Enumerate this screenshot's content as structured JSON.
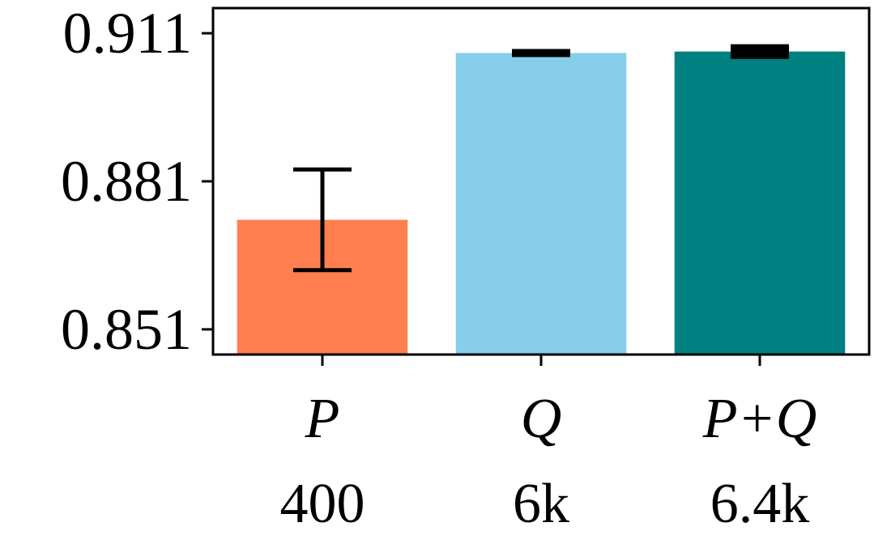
{
  "chart_data": {
    "type": "bar",
    "title": "",
    "xlabel": "",
    "ylabel": "",
    "categories": [
      "P",
      "Q",
      "P+Q"
    ],
    "category_sublabels": [
      "400",
      "6k",
      "6.4k"
    ],
    "values": [
      0.8732,
      0.907,
      0.9073
    ],
    "error": [
      0.0102,
      0.0003,
      0.0007
    ],
    "colors": [
      "#ff7f50",
      "#87ceeb",
      "#008080"
    ],
    "error_color": "#000000",
    "ylim": [
      0.8459,
      0.9161
    ],
    "yticks": [
      0.851,
      0.881,
      0.911
    ],
    "ytick_labels": [
      "0.851",
      "0.881",
      "0.911"
    ],
    "grid": false,
    "legend": "none"
  }
}
